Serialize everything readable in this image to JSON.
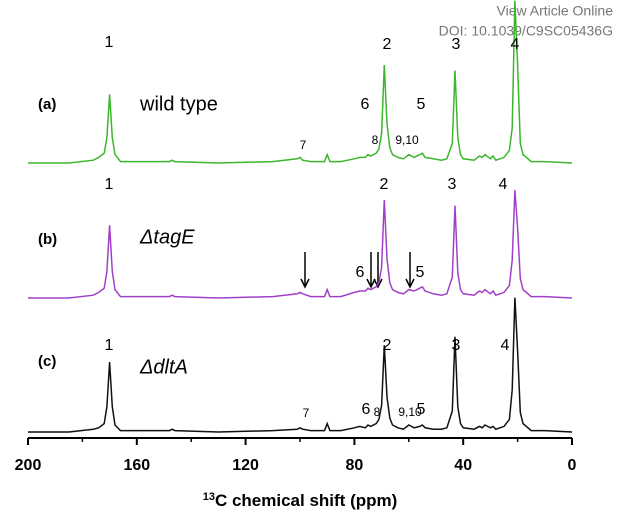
{
  "header": {
    "link": "View Article Online",
    "doi": "DOI: 10.1039/C9SC05436G"
  },
  "chart_data": {
    "type": "line",
    "x_label": {
      "superscript": "13",
      "text": "C chemical shift (ppm)"
    },
    "xlim": [
      200,
      0
    ],
    "xticks": [
      200,
      160,
      120,
      80,
      40,
      0
    ],
    "ylim": [
      0,
      100
    ],
    "x": [
      200,
      185,
      176,
      174,
      172,
      171,
      170,
      169,
      168,
      166,
      160,
      148,
      147,
      146,
      130,
      110,
      101,
      100,
      99,
      96,
      91,
      90,
      89,
      85,
      80,
      78,
      76,
      75,
      74,
      72,
      71,
      70,
      69,
      68,
      67,
      66,
      64,
      62,
      60,
      58,
      56,
      55,
      54,
      51,
      48,
      46,
      44,
      43,
      42,
      41,
      40,
      36,
      34,
      33,
      32,
      30,
      29,
      28,
      25,
      23,
      22,
      21,
      20,
      19,
      18,
      15,
      10,
      0
    ],
    "series": [
      {
        "name": "wild type",
        "tag": "(a)",
        "color": "#3cb62c",
        "labels": [
          "1",
          "2",
          "3",
          "4",
          "6",
          "5",
          "7",
          "8",
          "9,10"
        ],
        "values": [
          0,
          0,
          2,
          4,
          7,
          18,
          49,
          18,
          6,
          1,
          1,
          1,
          2,
          1,
          0,
          1,
          3,
          4,
          2,
          1,
          1,
          6,
          1,
          1,
          3,
          4,
          4,
          6,
          5,
          7,
          10,
          21,
          70,
          28,
          11,
          6,
          4,
          3,
          6,
          4,
          6,
          7,
          4,
          3,
          2,
          3,
          14,
          66,
          18,
          6,
          3,
          2,
          5,
          4,
          6,
          3,
          5,
          2,
          4,
          9,
          25,
          116,
          70,
          14,
          6,
          1,
          1,
          0
        ]
      },
      {
        "name": "ΔtagE",
        "tag": "(b)",
        "color": "#a040c8",
        "labels": [
          "1",
          "2",
          "3",
          "4",
          "6",
          "5"
        ],
        "values": [
          0,
          0,
          2,
          4,
          7,
          19,
          52,
          19,
          6,
          1,
          1,
          1,
          2,
          1,
          0,
          1,
          3,
          4,
          3,
          1,
          1,
          6,
          1,
          1,
          4,
          5,
          5,
          7,
          6,
          8,
          11,
          22,
          70,
          28,
          11,
          6,
          4,
          3,
          6,
          5,
          7,
          8,
          5,
          3,
          2,
          3,
          15,
          66,
          18,
          6,
          3,
          2,
          5,
          4,
          6,
          3,
          5,
          2,
          4,
          9,
          27,
          77,
          50,
          14,
          6,
          1,
          1,
          0
        ]
      },
      {
        "name": "ΔdltA",
        "tag": "(c)",
        "color": "#111111",
        "labels": [
          "1",
          "2",
          "3",
          "4",
          "6",
          "5",
          "7",
          "8",
          "9,10"
        ],
        "values": [
          0,
          0,
          2,
          3,
          6,
          18,
          50,
          18,
          5,
          1,
          1,
          1,
          2,
          1,
          0,
          1,
          2,
          3,
          2,
          1,
          1,
          6,
          1,
          1,
          3,
          4,
          3,
          5,
          4,
          6,
          9,
          19,
          62,
          25,
          10,
          5,
          3,
          2,
          5,
          3,
          4,
          5,
          3,
          2,
          2,
          3,
          15,
          68,
          18,
          6,
          3,
          2,
          4,
          3,
          5,
          3,
          4,
          2,
          4,
          9,
          30,
          96,
          58,
          14,
          6,
          1,
          1,
          0
        ]
      }
    ]
  }
}
